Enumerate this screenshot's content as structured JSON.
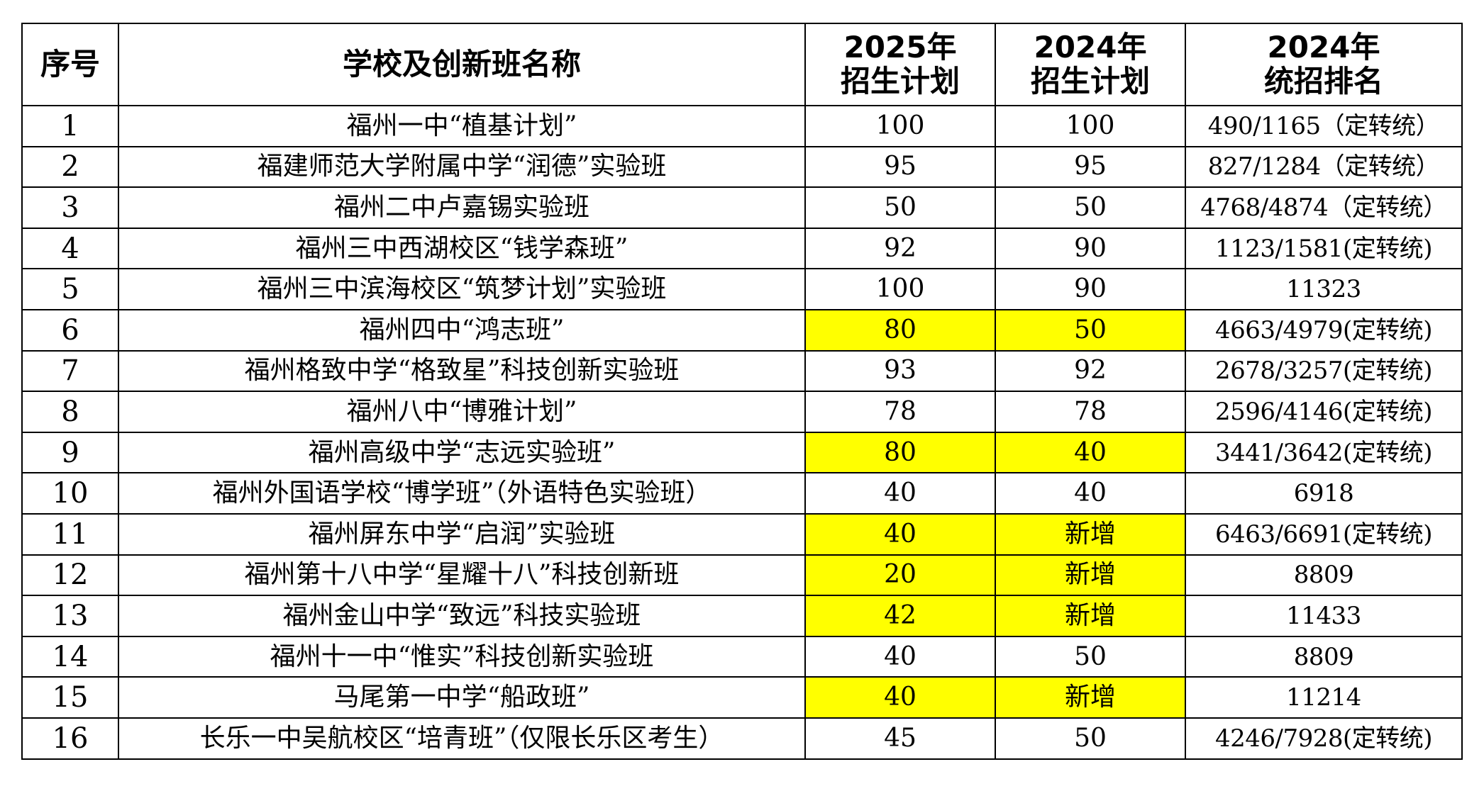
{
  "highlight_color": "#ffff00",
  "header": {
    "index": "序号",
    "name": "学校及创新班名称",
    "plan2025": [
      "2025年",
      "招生计划"
    ],
    "plan2024": [
      "2024年",
      "招生计划"
    ],
    "rank2024": [
      "2024年",
      "统招排名"
    ]
  },
  "rows": [
    {
      "index": "1",
      "name": "福州一中“植基计划”",
      "plan2025": "100",
      "plan2024": "100",
      "rank2024": "490/1165（定转统）",
      "highlight": false
    },
    {
      "index": "2",
      "name": "福建师范大学附属中学“润德”实验班",
      "plan2025": "95",
      "plan2024": "95",
      "rank2024": "827/1284（定转统）",
      "highlight": false
    },
    {
      "index": "3",
      "name": "福州二中卢嘉锡实验班",
      "plan2025": "50",
      "plan2024": "50",
      "rank2024": "4768/4874（定转统）",
      "highlight": false
    },
    {
      "index": "4",
      "name": "福州三中西湖校区“钱学森班”",
      "plan2025": "92",
      "plan2024": "90",
      "rank2024": "1123/1581(定转统)",
      "highlight": false
    },
    {
      "index": "5",
      "name": "福州三中滨海校区“筑梦计划”实验班",
      "plan2025": "100",
      "plan2024": "90",
      "rank2024": "11323",
      "highlight": false
    },
    {
      "index": "6",
      "name": "福州四中“鸿志班”",
      "plan2025": "80",
      "plan2024": "50",
      "rank2024": "4663/4979(定转统)",
      "highlight": true
    },
    {
      "index": "7",
      "name": "福州格致中学“格致星”科技创新实验班",
      "plan2025": "93",
      "plan2024": "92",
      "rank2024": "2678/3257(定转统)",
      "highlight": false
    },
    {
      "index": "8",
      "name": "福州八中“博雅计划”",
      "plan2025": "78",
      "plan2024": "78",
      "rank2024": "2596/4146(定转统)",
      "highlight": false
    },
    {
      "index": "9",
      "name": "福州高级中学“志远实验班”",
      "plan2025": "80",
      "plan2024": "40",
      "rank2024": "3441/3642(定转统)",
      "highlight": true
    },
    {
      "index": "10",
      "name": "福州外国语学校“博学班”（外语特色实验班）",
      "plan2025": "40",
      "plan2024": "40",
      "rank2024": "6918",
      "highlight": false
    },
    {
      "index": "11",
      "name": "福州屏东中学“启润”实验班",
      "plan2025": "40",
      "plan2024": "新增",
      "rank2024": "6463/6691(定转统)",
      "highlight": true
    },
    {
      "index": "12",
      "name": "福州第十八中学“星耀十八”科技创新班",
      "plan2025": "20",
      "plan2024": "新增",
      "rank2024": "8809",
      "highlight": true
    },
    {
      "index": "13",
      "name": "福州金山中学“致远”科技实验班",
      "plan2025": "42",
      "plan2024": "新增",
      "rank2024": "11433",
      "highlight": true
    },
    {
      "index": "14",
      "name": "福州十一中“惟实”科技创新实验班",
      "plan2025": "40",
      "plan2024": "50",
      "rank2024": "8809",
      "highlight": false
    },
    {
      "index": "15",
      "name": "马尾第一中学“船政班”",
      "plan2025": "40",
      "plan2024": "新增",
      "rank2024": "11214",
      "highlight": true
    },
    {
      "index": "16",
      "name": "长乐一中吴航校区“培青班”（仅限长乐区考生）",
      "plan2025": "45",
      "plan2024": "50",
      "rank2024": "4246/7928(定转统)",
      "highlight": false
    }
  ]
}
